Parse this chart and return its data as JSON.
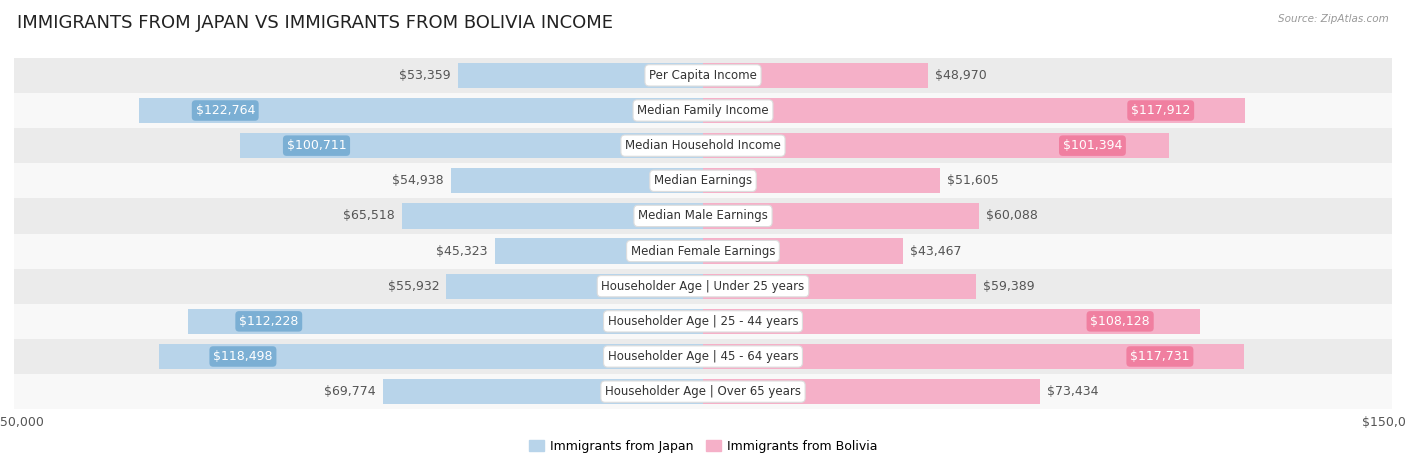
{
  "title": "IMMIGRANTS FROM JAPAN VS IMMIGRANTS FROM BOLIVIA INCOME",
  "source": "Source: ZipAtlas.com",
  "categories": [
    "Per Capita Income",
    "Median Family Income",
    "Median Household Income",
    "Median Earnings",
    "Median Male Earnings",
    "Median Female Earnings",
    "Householder Age | Under 25 years",
    "Householder Age | 25 - 44 years",
    "Householder Age | 45 - 64 years",
    "Householder Age | Over 65 years"
  ],
  "japan_values": [
    53359,
    122764,
    100711,
    54938,
    65518,
    45323,
    55932,
    112228,
    118498,
    69774
  ],
  "bolivia_values": [
    48970,
    117912,
    101394,
    51605,
    60088,
    43467,
    59389,
    108128,
    117731,
    73434
  ],
  "japan_labels": [
    "$53,359",
    "$122,764",
    "$100,711",
    "$54,938",
    "$65,518",
    "$45,323",
    "$55,932",
    "$112,228",
    "$118,498",
    "$69,774"
  ],
  "bolivia_labels": [
    "$48,970",
    "$117,912",
    "$101,394",
    "$51,605",
    "$60,088",
    "$43,467",
    "$59,389",
    "$108,128",
    "$117,731",
    "$73,434"
  ],
  "japan_color": "#7bafd4",
  "bolivia_color": "#f07fa0",
  "japan_color_light": "#b8d4ea",
  "bolivia_color_light": "#f5b0c8",
  "max_value": 150000,
  "background_color": "#ffffff",
  "row_bg_even": "#ebebeb",
  "row_bg_odd": "#f8f8f8",
  "legend_japan": "Immigrants from Japan",
  "legend_bolivia": "Immigrants from Bolivia",
  "inner_label_threshold": 80000,
  "title_fontsize": 13,
  "label_fontsize": 9,
  "category_fontsize": 8.5,
  "axis_fontsize": 9
}
